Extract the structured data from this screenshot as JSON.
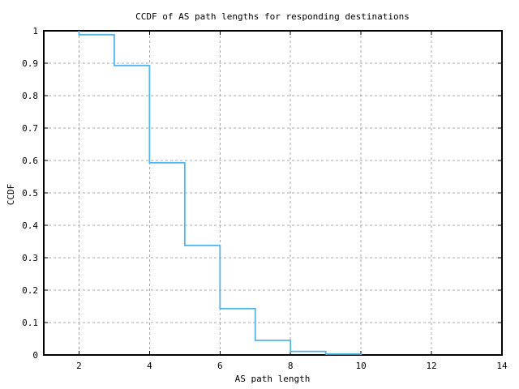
{
  "chart_data": {
    "type": "line",
    "style": "steps",
    "title": "CCDF of AS path lengths for responding destinations",
    "xlabel": "AS path length",
    "ylabel": "CCDF",
    "xlim": [
      1,
      14
    ],
    "ylim": [
      0,
      1
    ],
    "xticks": [
      2,
      4,
      6,
      8,
      10,
      12,
      14
    ],
    "yticks": [
      0,
      0.1,
      0.2,
      0.3,
      0.4,
      0.5,
      0.6,
      0.7,
      0.8,
      0.9,
      1
    ],
    "grid": true,
    "legend": "none",
    "colors": {
      "line": "#56b4e9",
      "grid": "#a8a8a8",
      "border": "#000000",
      "background": "#ffffff"
    },
    "series": [
      {
        "name": "ccdf-of-as-path-length",
        "leadin_y": 1.0,
        "points": [
          [
            2,
            0.988
          ],
          [
            3,
            0.893
          ],
          [
            4,
            0.593
          ],
          [
            5,
            0.338
          ],
          [
            6,
            0.143
          ],
          [
            7,
            0.045
          ],
          [
            8,
            0.011
          ],
          [
            9,
            0.003
          ],
          [
            10,
            0
          ]
        ]
      }
    ]
  }
}
